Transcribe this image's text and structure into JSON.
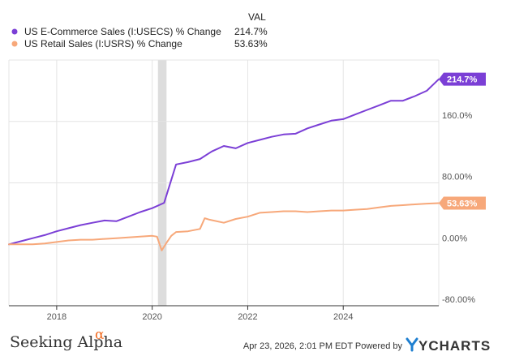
{
  "chart_data": {
    "type": "line",
    "legend_header": "VAL",
    "series": [
      {
        "name": "US E-Commerce Sales (I:USECS) % Change",
        "value_label": "214.7%",
        "color": "#7b3fd6",
        "x": [
          2017.0,
          2017.25,
          2017.5,
          2017.75,
          2018.0,
          2018.25,
          2018.5,
          2018.75,
          2019.0,
          2019.25,
          2019.5,
          2019.75,
          2020.0,
          2020.25,
          2020.5,
          2020.75,
          2021.0,
          2021.25,
          2021.5,
          2021.75,
          2022.0,
          2022.25,
          2022.5,
          2022.75,
          2023.0,
          2023.25,
          2023.5,
          2023.75,
          2024.0,
          2024.25,
          2024.5,
          2024.75,
          2025.0,
          2025.25,
          2025.5,
          2025.75,
          2026.0
        ],
        "values": [
          0,
          4,
          8,
          12,
          17,
          21,
          25,
          28,
          31,
          30,
          36,
          42,
          47,
          54,
          104,
          107,
          111,
          121,
          128,
          125,
          132,
          136,
          140,
          143,
          144,
          151,
          156,
          161,
          163,
          169,
          175,
          181,
          187,
          187,
          193,
          200,
          215
        ]
      },
      {
        "name": "US Retail Sales (I:USRS) % Change",
        "value_label": "53.63%",
        "color": "#f7a87a",
        "x": [
          2017.0,
          2017.25,
          2017.5,
          2017.75,
          2018.0,
          2018.25,
          2018.5,
          2018.75,
          2019.0,
          2019.25,
          2019.5,
          2019.75,
          2020.0,
          2020.1,
          2020.2,
          2020.3,
          2020.4,
          2020.5,
          2020.75,
          2021.0,
          2021.1,
          2021.2,
          2021.5,
          2021.75,
          2022.0,
          2022.25,
          2022.5,
          2022.75,
          2023.0,
          2023.25,
          2023.5,
          2023.75,
          2024.0,
          2024.25,
          2024.5,
          2024.75,
          2025.0,
          2025.25,
          2025.5,
          2025.75,
          2026.0
        ],
        "values": [
          0,
          0,
          0,
          1,
          3,
          5,
          6,
          6,
          7,
          8,
          9,
          10,
          11,
          10,
          -8,
          2,
          11,
          16,
          17,
          20,
          34,
          32,
          28,
          33,
          36,
          41,
          42,
          43,
          43,
          42,
          43,
          44,
          44,
          45,
          46,
          48,
          50,
          51,
          52,
          53,
          53.63
        ]
      }
    ],
    "recession_band": {
      "start": 2020.12,
      "end": 2020.3
    },
    "xlim": [
      2017.0,
      2026.0
    ],
    "ylim": [
      -80,
      240
    ],
    "x_ticks": [
      2018,
      2020,
      2022,
      2024
    ],
    "x_tick_labels": [
      "2018",
      "2020",
      "2022",
      "2024"
    ],
    "y_ticks": [
      160,
      80,
      0,
      -80
    ],
    "y_tick_labels": [
      "160.0%",
      "80.00%",
      "0.00%",
      "-80.00%"
    ],
    "end_labels": [
      "214.7%",
      "53.63%"
    ]
  },
  "footer": {
    "timestamp": "Apr 23, 2026, 2:01 PM EDT Powered by",
    "ycharts": "YCHARTS",
    "seeking_alpha": "Seeking Alpha",
    "alpha_symbol": "α"
  },
  "colors": {
    "grid": "#e4e4e4",
    "axis": "#333333",
    "band": "#dddddd"
  }
}
